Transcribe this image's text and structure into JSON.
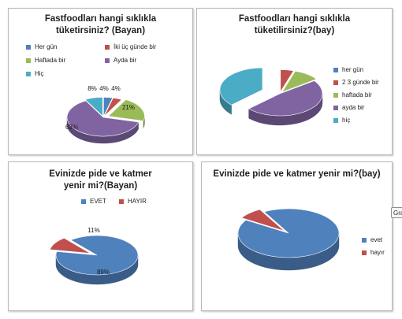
{
  "chart_data": [
    {
      "type": "pie",
      "title": "Fastfoodları hangi sıklıkla tüketirsiniz? (Bayan)",
      "categories": [
        "Her gün",
        "İki üç günde bir",
        "Haftada bir",
        "Ayda bir",
        "Hiç"
      ],
      "values": [
        4,
        4,
        21,
        63,
        8
      ],
      "data_labels": [
        "4%",
        "4%",
        "21%",
        "63%",
        "8%"
      ],
      "colors": [
        "#4f81bd",
        "#c0504d",
        "#9bbb59",
        "#8064a2",
        "#4bacc6"
      ],
      "legend_position": "top"
    },
    {
      "type": "pie",
      "title": "Fastfoodları hangi sıklıkla tüketilirsiniz?(bay)",
      "categories": [
        "her gün",
        "2 3 günde bir",
        "haftada bir",
        "ayda bir",
        "hiç"
      ],
      "values": [
        0,
        5,
        10,
        48,
        37
      ],
      "colors": [
        "#4f81bd",
        "#c0504d",
        "#9bbb59",
        "#8064a2",
        "#4bacc6"
      ],
      "legend_position": "right"
    },
    {
      "type": "pie",
      "title": "Evinizde pide ve katmer yenir mi?(Bayan)",
      "categories": [
        "EVET",
        "HAYIR"
      ],
      "values": [
        89,
        11
      ],
      "data_labels": [
        "89%",
        "11%"
      ],
      "colors": [
        "#4f81bd",
        "#c0504d"
      ],
      "legend_position": "top"
    },
    {
      "type": "pie",
      "title": "Evinizde pide ve katmer yenir mi?(bay)",
      "categories": [
        "evet",
        "hayır"
      ],
      "values": [
        92,
        8
      ],
      "colors": [
        "#4f81bd",
        "#c0504d"
      ],
      "legend_position": "right"
    }
  ],
  "tooltip": {
    "text": "Gra"
  }
}
